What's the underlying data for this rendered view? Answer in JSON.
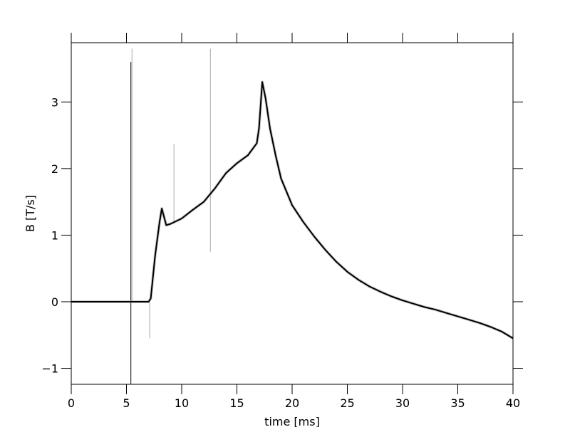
{
  "chart_data": {
    "type": "line",
    "title": "",
    "xlabel": "time [ms]",
    "ylabel": "B [T/s]",
    "xlim": [
      0,
      40
    ],
    "ylim": [
      -1.24,
      3.89
    ],
    "xticks": [
      0,
      5,
      10,
      15,
      20,
      25,
      30,
      35,
      40
    ],
    "xtick_labels": [
      "0",
      "5",
      "10",
      "15",
      "20",
      "25",
      "30",
      "35",
      "40"
    ],
    "yticks": [
      -1,
      0,
      1,
      2,
      3
    ],
    "ytick_labels": [
      "−1",
      "0",
      "1",
      "2",
      "3"
    ],
    "grid": false,
    "legend": "none",
    "line_color": "#000000",
    "spike_color": "#aaaaaa",
    "series": [
      {
        "x": [
          0,
          5.4,
          7.0,
          7.2,
          7.6,
          8.0,
          8.2,
          8.6,
          9,
          10,
          11,
          12,
          13,
          14,
          15,
          16,
          16.8,
          17,
          17.3,
          17.6,
          18,
          18.5,
          19,
          20,
          21,
          22,
          23,
          24,
          25,
          26,
          27,
          28,
          29,
          30,
          31,
          32,
          33,
          34,
          35,
          36,
          37,
          38,
          39,
          40
        ],
        "y": [
          0,
          0,
          0,
          0.05,
          0.7,
          1.2,
          1.4,
          1.15,
          1.17,
          1.25,
          1.38,
          1.5,
          1.7,
          1.93,
          2.08,
          2.2,
          2.38,
          2.6,
          3.3,
          3.05,
          2.6,
          2.2,
          1.85,
          1.45,
          1.2,
          0.98,
          0.78,
          0.6,
          0.45,
          0.33,
          0.23,
          0.15,
          0.08,
          0.02,
          -0.03,
          -0.08,
          -0.12,
          -0.17,
          -0.22,
          -0.27,
          -0.32,
          -0.38,
          -0.45,
          -0.55
        ]
      }
    ],
    "spikes": [
      {
        "x": 5.4,
        "y0": -1.24,
        "y1": 3.6,
        "color": "#000000"
      },
      {
        "x": 5.5,
        "y0": 0,
        "y1": 3.8,
        "color": "#aaaaaa"
      },
      {
        "x": 7.1,
        "y0": -0.55,
        "y1": 0,
        "color": "#aaaaaa"
      },
      {
        "x": 9.3,
        "y0": 1.2,
        "y1": 2.37,
        "color": "#aaaaaa"
      },
      {
        "x": 12.6,
        "y0": 0.75,
        "y1": 3.8,
        "color": "#aaaaaa"
      }
    ]
  }
}
